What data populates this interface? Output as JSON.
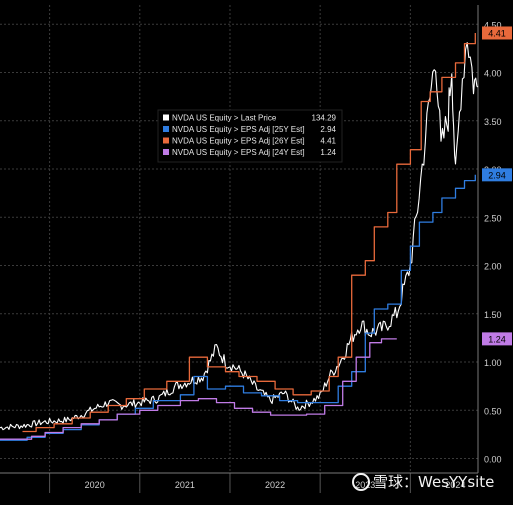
{
  "chart_data": {
    "type": "line",
    "title": "",
    "xlabel": "",
    "ylabel": "",
    "x_ticks": [
      "2020",
      "2021",
      "2022",
      "2023",
      "2024"
    ],
    "x_range": [
      2019.45,
      2024.75
    ],
    "ylim": [
      -0.15,
      4.7
    ],
    "y_ticks": [
      "0.00",
      "0.50",
      "1.00",
      "1.50",
      "2.00",
      "2.50",
      "3.00",
      "3.50",
      "4.00",
      "4.50"
    ],
    "grid": true,
    "legend_placement": "top-center",
    "series": [
      {
        "name": "NVDA US Equity > Last Price",
        "last_value": "134.29",
        "color": "#ffffff",
        "kind": "jagged",
        "points": [
          [
            2019.45,
            0.32
          ],
          [
            2019.7,
            0.34
          ],
          [
            2019.95,
            0.38
          ],
          [
            2020.2,
            0.4
          ],
          [
            2020.35,
            0.45
          ],
          [
            2020.5,
            0.52
          ],
          [
            2020.65,
            0.58
          ],
          [
            2020.8,
            0.55
          ],
          [
            2021.0,
            0.58
          ],
          [
            2021.2,
            0.62
          ],
          [
            2021.4,
            0.75
          ],
          [
            2021.55,
            0.8
          ],
          [
            2021.7,
            0.85
          ],
          [
            2021.85,
            1.15
          ],
          [
            2021.95,
            1.0
          ],
          [
            2022.05,
            0.95
          ],
          [
            2022.15,
            0.88
          ],
          [
            2022.3,
            0.72
          ],
          [
            2022.45,
            0.6
          ],
          [
            2022.6,
            0.68
          ],
          [
            2022.75,
            0.52
          ],
          [
            2022.88,
            0.58
          ],
          [
            2023.0,
            0.65
          ],
          [
            2023.1,
            0.85
          ],
          [
            2023.22,
            1.0
          ],
          [
            2023.35,
            1.25
          ],
          [
            2023.45,
            1.4
          ],
          [
            2023.55,
            1.3
          ],
          [
            2023.7,
            1.35
          ],
          [
            2023.85,
            1.5
          ],
          [
            2024.0,
            2.0
          ],
          [
            2024.08,
            2.6
          ],
          [
            2024.2,
            3.6
          ],
          [
            2024.28,
            4.2
          ],
          [
            2024.34,
            3.2
          ],
          [
            2024.42,
            3.55
          ],
          [
            2024.46,
            4.1
          ],
          [
            2024.5,
            2.9
          ],
          [
            2024.56,
            3.8
          ],
          [
            2024.63,
            4.4
          ],
          [
            2024.7,
            3.9
          ],
          [
            2024.75,
            3.85
          ]
        ]
      },
      {
        "name": "NVDA US Equity > EPS Adj [25Y Est]",
        "last_value": "2.94",
        "color": "#2f7de1",
        "kind": "step",
        "points": [
          [
            2019.45,
            0.19
          ],
          [
            2019.75,
            0.22
          ],
          [
            2019.95,
            0.26
          ],
          [
            2020.15,
            0.3
          ],
          [
            2020.35,
            0.35
          ],
          [
            2020.55,
            0.4
          ],
          [
            2020.75,
            0.46
          ],
          [
            2020.95,
            0.52
          ],
          [
            2021.15,
            0.6
          ],
          [
            2021.45,
            0.66
          ],
          [
            2021.6,
            0.85
          ],
          [
            2021.75,
            0.72
          ],
          [
            2021.95,
            0.75
          ],
          [
            2022.15,
            0.68
          ],
          [
            2022.35,
            0.65
          ],
          [
            2022.55,
            0.6
          ],
          [
            2022.75,
            0.58
          ],
          [
            2022.95,
            0.58
          ],
          [
            2023.2,
            0.75
          ],
          [
            2023.35,
            0.9
          ],
          [
            2023.5,
            1.3
          ],
          [
            2023.6,
            1.55
          ],
          [
            2023.75,
            1.6
          ],
          [
            2023.9,
            1.95
          ],
          [
            2024.0,
            2.2
          ],
          [
            2024.1,
            2.45
          ],
          [
            2024.25,
            2.55
          ],
          [
            2024.35,
            2.7
          ],
          [
            2024.5,
            2.8
          ],
          [
            2024.6,
            2.88
          ],
          [
            2024.72,
            2.94
          ]
        ]
      },
      {
        "name": "NVDA US Equity > EPS Adj [26Y Est]",
        "last_value": "4.41",
        "color": "#e8693b",
        "kind": "step",
        "points": [
          [
            2019.7,
            0.28
          ],
          [
            2019.85,
            0.32
          ],
          [
            2020.05,
            0.36
          ],
          [
            2020.25,
            0.42
          ],
          [
            2020.45,
            0.48
          ],
          [
            2020.65,
            0.55
          ],
          [
            2020.85,
            0.62
          ],
          [
            2021.05,
            0.72
          ],
          [
            2021.3,
            0.8
          ],
          [
            2021.55,
            1.05
          ],
          [
            2021.75,
            0.95
          ],
          [
            2021.95,
            0.9
          ],
          [
            2022.1,
            0.85
          ],
          [
            2022.3,
            0.8
          ],
          [
            2022.5,
            0.72
          ],
          [
            2022.7,
            0.66
          ],
          [
            2022.9,
            0.7
          ],
          [
            2023.1,
            0.85
          ],
          [
            2023.2,
            1.05
          ],
          [
            2023.35,
            1.9
          ],
          [
            2023.5,
            2.05
          ],
          [
            2023.6,
            2.4
          ],
          [
            2023.75,
            2.55
          ],
          [
            2023.85,
            3.05
          ],
          [
            2024.0,
            3.2
          ],
          [
            2024.12,
            3.7
          ],
          [
            2024.22,
            3.8
          ],
          [
            2024.35,
            3.95
          ],
          [
            2024.5,
            4.1
          ],
          [
            2024.6,
            4.3
          ],
          [
            2024.72,
            4.41
          ]
        ]
      },
      {
        "name": "NVDA US Equity > EPS Adj [24Y Est]",
        "last_value": "1.24",
        "color": "#c07be6",
        "kind": "step",
        "points": [
          [
            2019.45,
            0.2
          ],
          [
            2019.65,
            0.2
          ],
          [
            2019.8,
            0.23
          ],
          [
            2019.95,
            0.27
          ],
          [
            2020.15,
            0.32
          ],
          [
            2020.35,
            0.36
          ],
          [
            2020.55,
            0.4
          ],
          [
            2020.75,
            0.46
          ],
          [
            2021.0,
            0.5
          ],
          [
            2021.2,
            0.55
          ],
          [
            2021.45,
            0.6
          ],
          [
            2021.65,
            0.62
          ],
          [
            2021.85,
            0.58
          ],
          [
            2022.05,
            0.52
          ],
          [
            2022.25,
            0.48
          ],
          [
            2022.45,
            0.45
          ],
          [
            2022.65,
            0.45
          ],
          [
            2022.85,
            0.46
          ],
          [
            2023.05,
            0.55
          ],
          [
            2023.25,
            0.8
          ],
          [
            2023.4,
            1.05
          ],
          [
            2023.55,
            1.2
          ],
          [
            2023.68,
            1.24
          ],
          [
            2023.85,
            1.24
          ]
        ]
      }
    ]
  },
  "watermark": {
    "text": "雪球：WesYYsite"
  }
}
